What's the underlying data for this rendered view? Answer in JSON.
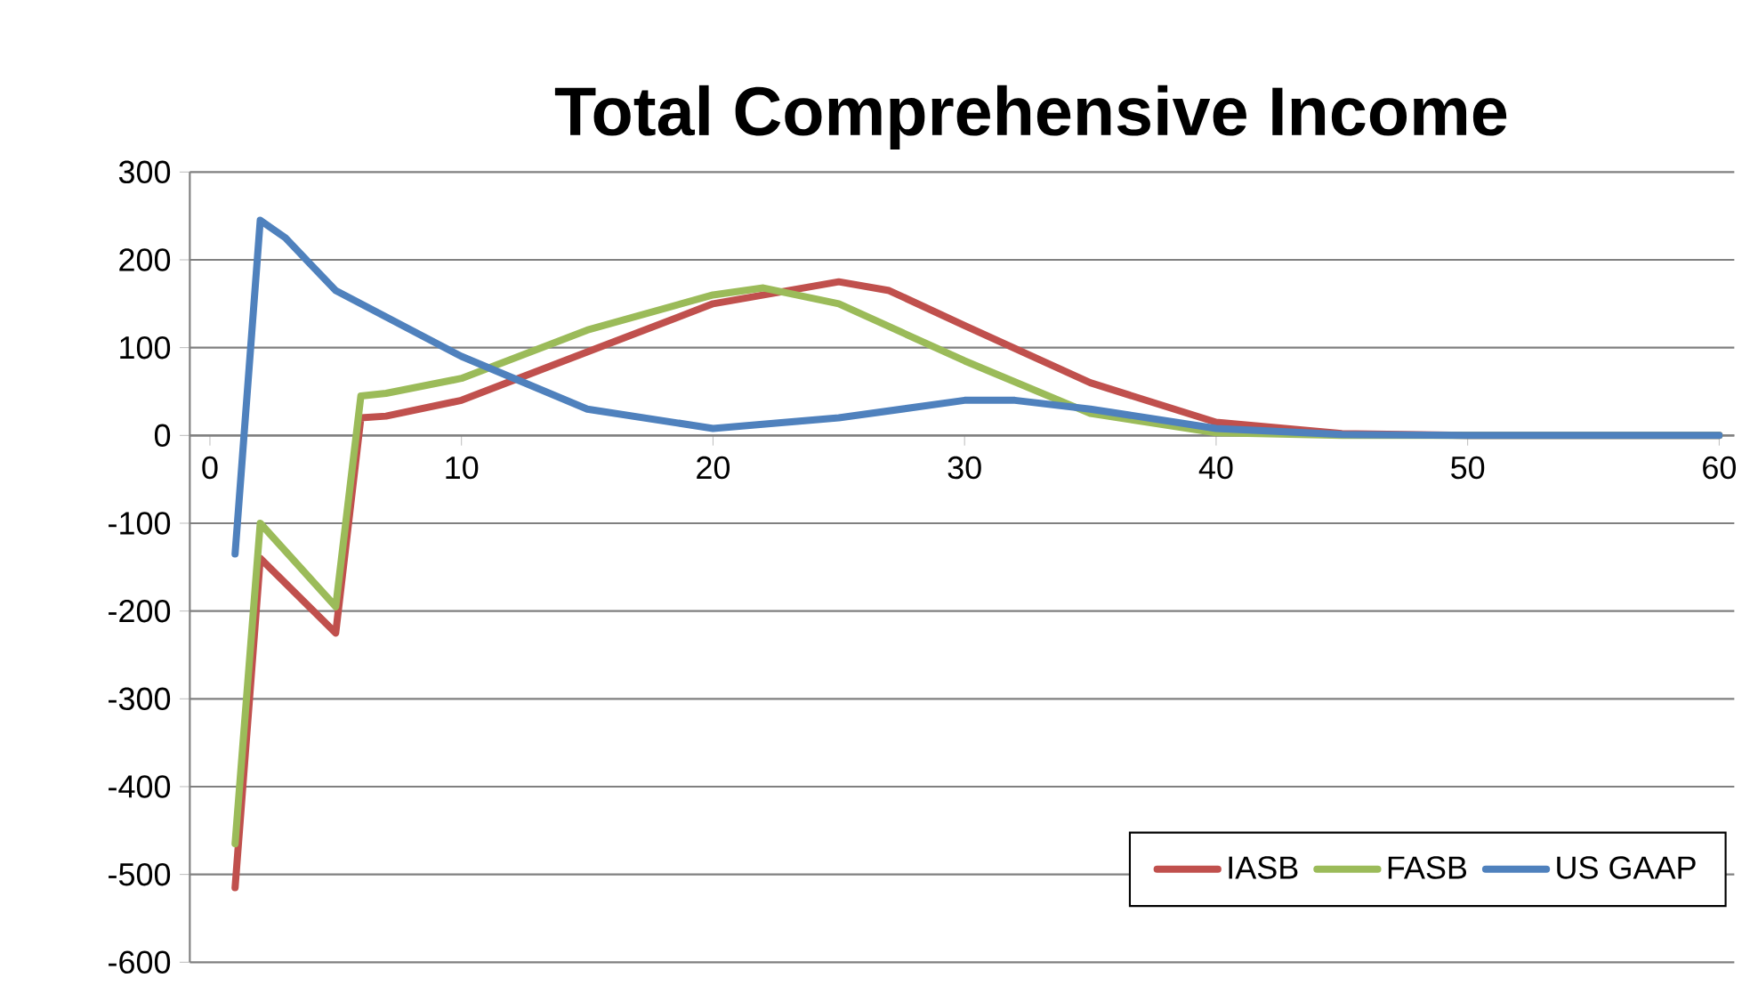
{
  "chart_data": {
    "type": "line",
    "title": "Total Comprehensive Income",
    "xlim": [
      -0.8,
      60.6
    ],
    "ylim": [
      -600,
      300
    ],
    "xticks": [
      0,
      10,
      20,
      30,
      40,
      50,
      60
    ],
    "yticks": [
      -600,
      -500,
      -400,
      -300,
      -200,
      -100,
      0,
      100,
      200,
      300
    ],
    "grid": "y",
    "legend": "bottom right",
    "marker": "none",
    "line_style": "solid",
    "series": [
      {
        "name": "IASB",
        "color": "#c0504d",
        "x": [
          1,
          2,
          5,
          6,
          7,
          10,
          15,
          20,
          25,
          27,
          30,
          35,
          40,
          45,
          50,
          60
        ],
        "values": [
          -515,
          -140,
          -225,
          20,
          22,
          40,
          95,
          150,
          175,
          165,
          125,
          60,
          15,
          2,
          0,
          0
        ]
      },
      {
        "name": "FASB",
        "color": "#9bbb59",
        "x": [
          1,
          2,
          5,
          6,
          7,
          10,
          15,
          20,
          22,
          25,
          30,
          35,
          40,
          45,
          60
        ],
        "values": [
          -465,
          -100,
          -195,
          45,
          48,
          65,
          120,
          160,
          168,
          150,
          85,
          25,
          3,
          0,
          0
        ]
      },
      {
        "name": "US GAAP",
        "color": "#4f81bd",
        "x": [
          1,
          2,
          3,
          4,
          5,
          10,
          15,
          20,
          25,
          30,
          32,
          35,
          40,
          45,
          50,
          60
        ],
        "values": [
          -135,
          245,
          225,
          195,
          165,
          90,
          30,
          8,
          20,
          40,
          40,
          30,
          8,
          1,
          0,
          0
        ]
      }
    ]
  }
}
